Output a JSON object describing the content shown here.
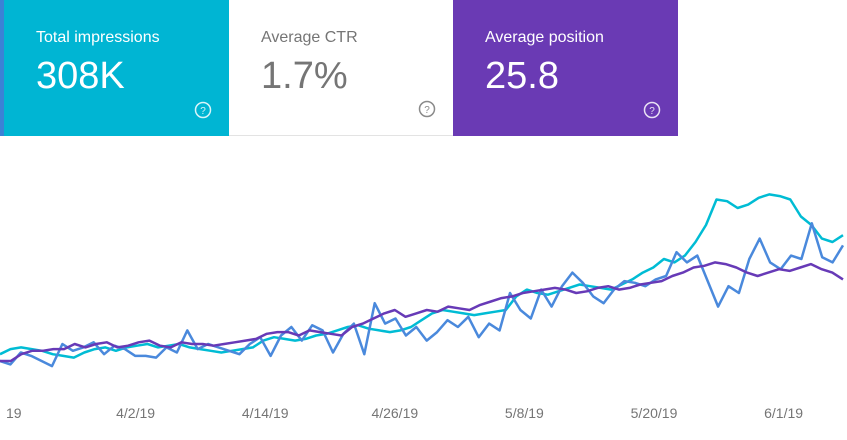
{
  "cards": [
    {
      "label": "Total impressions",
      "value": "308K",
      "color": "#00b5d3",
      "text_color": "#ffffff"
    },
    {
      "label": "Average CTR",
      "value": "1.7%",
      "color": "#ffffff",
      "text_color": "#757575"
    },
    {
      "label": "Average position",
      "value": "25.8",
      "color": "#6a3ab4",
      "text_color": "#ffffff"
    }
  ],
  "chart_data": {
    "type": "line",
    "title": "",
    "xlabel": "",
    "ylabel": "",
    "grid": false,
    "x_tick_labels": [
      "19",
      "4/2/19",
      "4/14/19",
      "4/26/19",
      "5/8/19",
      "5/20/19",
      "6/1/19"
    ],
    "x_tick_days": [
      0,
      12,
      24,
      36,
      48,
      60,
      72
    ],
    "y_range": [
      0,
      100
    ],
    "series": [
      {
        "color": "#00bcd4",
        "values": [
          4,
          7,
          8,
          7,
          6,
          4,
          3,
          2,
          5,
          7,
          8,
          6,
          8,
          9,
          10,
          8,
          9,
          10,
          8,
          7,
          6,
          5,
          6,
          7,
          8,
          12,
          14,
          13,
          12,
          13,
          15,
          16,
          18,
          20,
          21,
          19,
          18,
          17,
          18,
          20,
          24,
          28,
          30,
          29,
          28,
          27,
          28,
          29,
          30,
          38,
          42,
          40,
          39,
          41,
          43,
          45,
          44,
          43,
          42,
          45,
          48,
          52,
          55,
          60,
          58,
          62,
          70,
          80,
          95,
          94,
          90,
          92,
          96,
          98,
          97,
          95,
          85,
          80,
          72,
          70,
          74
        ]
      },
      {
        "color": "#4a89dc",
        "values": [
          0,
          -2,
          5,
          3,
          0,
          -3,
          10,
          6,
          8,
          11,
          4,
          9,
          7,
          3,
          3,
          2,
          8,
          5,
          18,
          7,
          10,
          8,
          6,
          4,
          10,
          14,
          3,
          15,
          20,
          12,
          21,
          18,
          5,
          16,
          22,
          4,
          34,
          22,
          25,
          15,
          20,
          12,
          17,
          24,
          20,
          26,
          14,
          22,
          18,
          40,
          30,
          25,
          42,
          32,
          44,
          52,
          46,
          38,
          34,
          42,
          47,
          46,
          44,
          48,
          50,
          64,
          58,
          62,
          47,
          32,
          44,
          40,
          60,
          72,
          58,
          54,
          62,
          60,
          81,
          61,
          58,
          68
        ]
      },
      {
        "color": "#673ab7",
        "values": [
          0,
          0,
          4,
          6,
          6,
          7,
          7,
          10,
          8,
          10,
          11,
          8,
          9,
          11,
          12,
          9,
          8,
          11,
          10,
          10,
          9,
          10,
          11,
          12,
          13,
          16,
          17,
          17,
          15,
          18,
          17,
          16,
          15,
          20,
          22,
          25,
          28,
          30,
          26,
          28,
          30,
          29,
          32,
          31,
          30,
          33,
          35,
          37,
          38,
          40,
          41,
          42,
          43,
          42,
          40,
          41,
          43,
          44,
          42,
          43,
          45,
          46,
          47,
          50,
          52,
          55,
          56,
          58,
          57,
          55,
          52,
          50,
          52,
          54,
          53,
          55,
          57,
          54,
          52,
          48
        ]
      }
    ]
  }
}
